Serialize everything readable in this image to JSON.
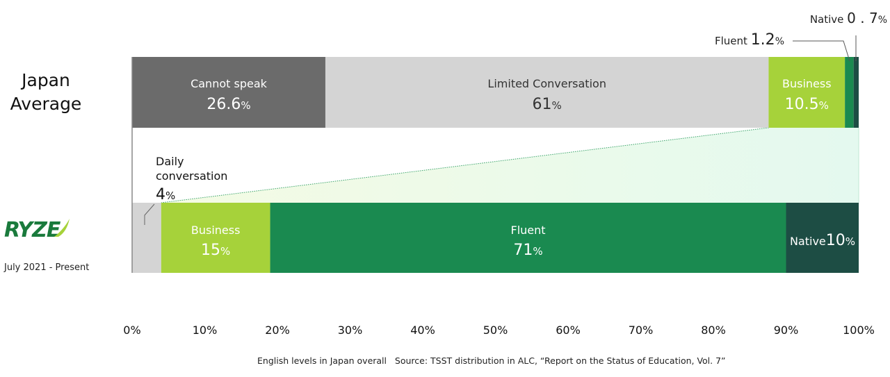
{
  "chart_data": [
    {
      "type": "bar",
      "orientation": "horizontal-stacked",
      "label_lines": [
        "Japan",
        "Average"
      ],
      "categories": [
        "Cannot speak",
        "Limited Conversation",
        "Business",
        "Fluent",
        "Native"
      ],
      "values": [
        26.6,
        61,
        10.5,
        1.2,
        0.7
      ],
      "value_labels": [
        "26.6",
        "61",
        "10.5",
        "1.2",
        "0.7"
      ],
      "colors": [
        "#6b6b6b",
        "#d4d4d4",
        "#a6d23a",
        "#1a8a50",
        "#1d4d44"
      ]
    },
    {
      "type": "bar",
      "orientation": "horizontal-stacked",
      "brand": "RYZE",
      "period": "July 2021 - Present",
      "categories": [
        "Daily conversation",
        "Business",
        "Fluent",
        "Native"
      ],
      "values": [
        4,
        15,
        71,
        10
      ],
      "value_labels": [
        "4",
        "15",
        "71",
        "10"
      ],
      "colors": [
        "#d4d4d4",
        "#a6d23a",
        "#1a8a50",
        "#1d4d44"
      ]
    }
  ],
  "axis": {
    "xlim": [
      0,
      100
    ],
    "ticks": [
      "0%",
      "10%",
      "20%",
      "30%",
      "40%",
      "50%",
      "60%",
      "70%",
      "80%",
      "90%",
      "100%"
    ]
  },
  "percent_sign": "%",
  "caption": "English levels in Japan overall   Source: TSST distribution in ALC, “Report on the Status of Education, Vol. 7”"
}
